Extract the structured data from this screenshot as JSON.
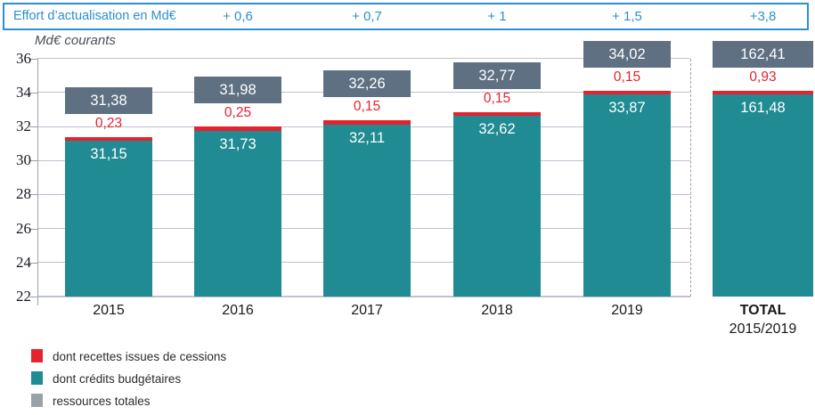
{
  "header": {
    "label": "Effort d’actualisation en Md€",
    "values": [
      "+ 0,6",
      "+ 0,7",
      "+ 1",
      "+ 1,5",
      "+3,8"
    ]
  },
  "axis_unit_label": "Md€ courants",
  "chart_data": {
    "type": "bar",
    "title": "Effort d’actualisation en Md€",
    "unit_label": "Md€ courants",
    "categories": [
      "2015",
      "2016",
      "2017",
      "2018",
      "2019",
      "TOTAL"
    ],
    "total_category_subline": "2015/2019",
    "effort_row": [
      "+ 0,6",
      "+ 0,7",
      "+ 1",
      "+ 1,5",
      "+3,8"
    ],
    "series": [
      {
        "name": "dont recettes issues de cessions",
        "color": "#e4232e",
        "values": [
          0.23,
          0.25,
          0.15,
          0.15,
          0.15,
          0.93
        ],
        "labels": [
          "0,23",
          "0,25",
          "0,15",
          "0,15",
          "0,15",
          "0,93"
        ]
      },
      {
        "name": "dont crédits budgétaires",
        "color": "#208b92",
        "values": [
          31.15,
          31.73,
          32.11,
          32.62,
          33.87,
          161.48
        ],
        "labels": [
          "31,15",
          "31,73",
          "32,11",
          "32,62",
          "33,87",
          "161,48"
        ]
      },
      {
        "name": "ressources totales",
        "color": "#5e7082",
        "values": [
          31.38,
          31.98,
          32.26,
          32.77,
          34.02,
          162.41
        ],
        "labels": [
          "31,38",
          "31,98",
          "32,26",
          "32,77",
          "34,02",
          "162,41"
        ]
      }
    ],
    "ylim": [
      22,
      36
    ],
    "ytick_step": 2,
    "yticks": [
      22,
      24,
      26,
      28,
      30,
      32,
      34,
      36
    ],
    "grid": true,
    "legend_position": "bottom-left",
    "note": "TOTAL column is drawn clipped to the 2019 bar height; its true values exceed the axis range"
  },
  "legend": [
    {
      "label": "dont recettes issues de cessions",
      "color": "#e4232e"
    },
    {
      "label": "dont crédits budgétaires",
      "color": "#208b92"
    },
    {
      "label": "ressources totales",
      "color": "#9aa0a8"
    }
  ]
}
